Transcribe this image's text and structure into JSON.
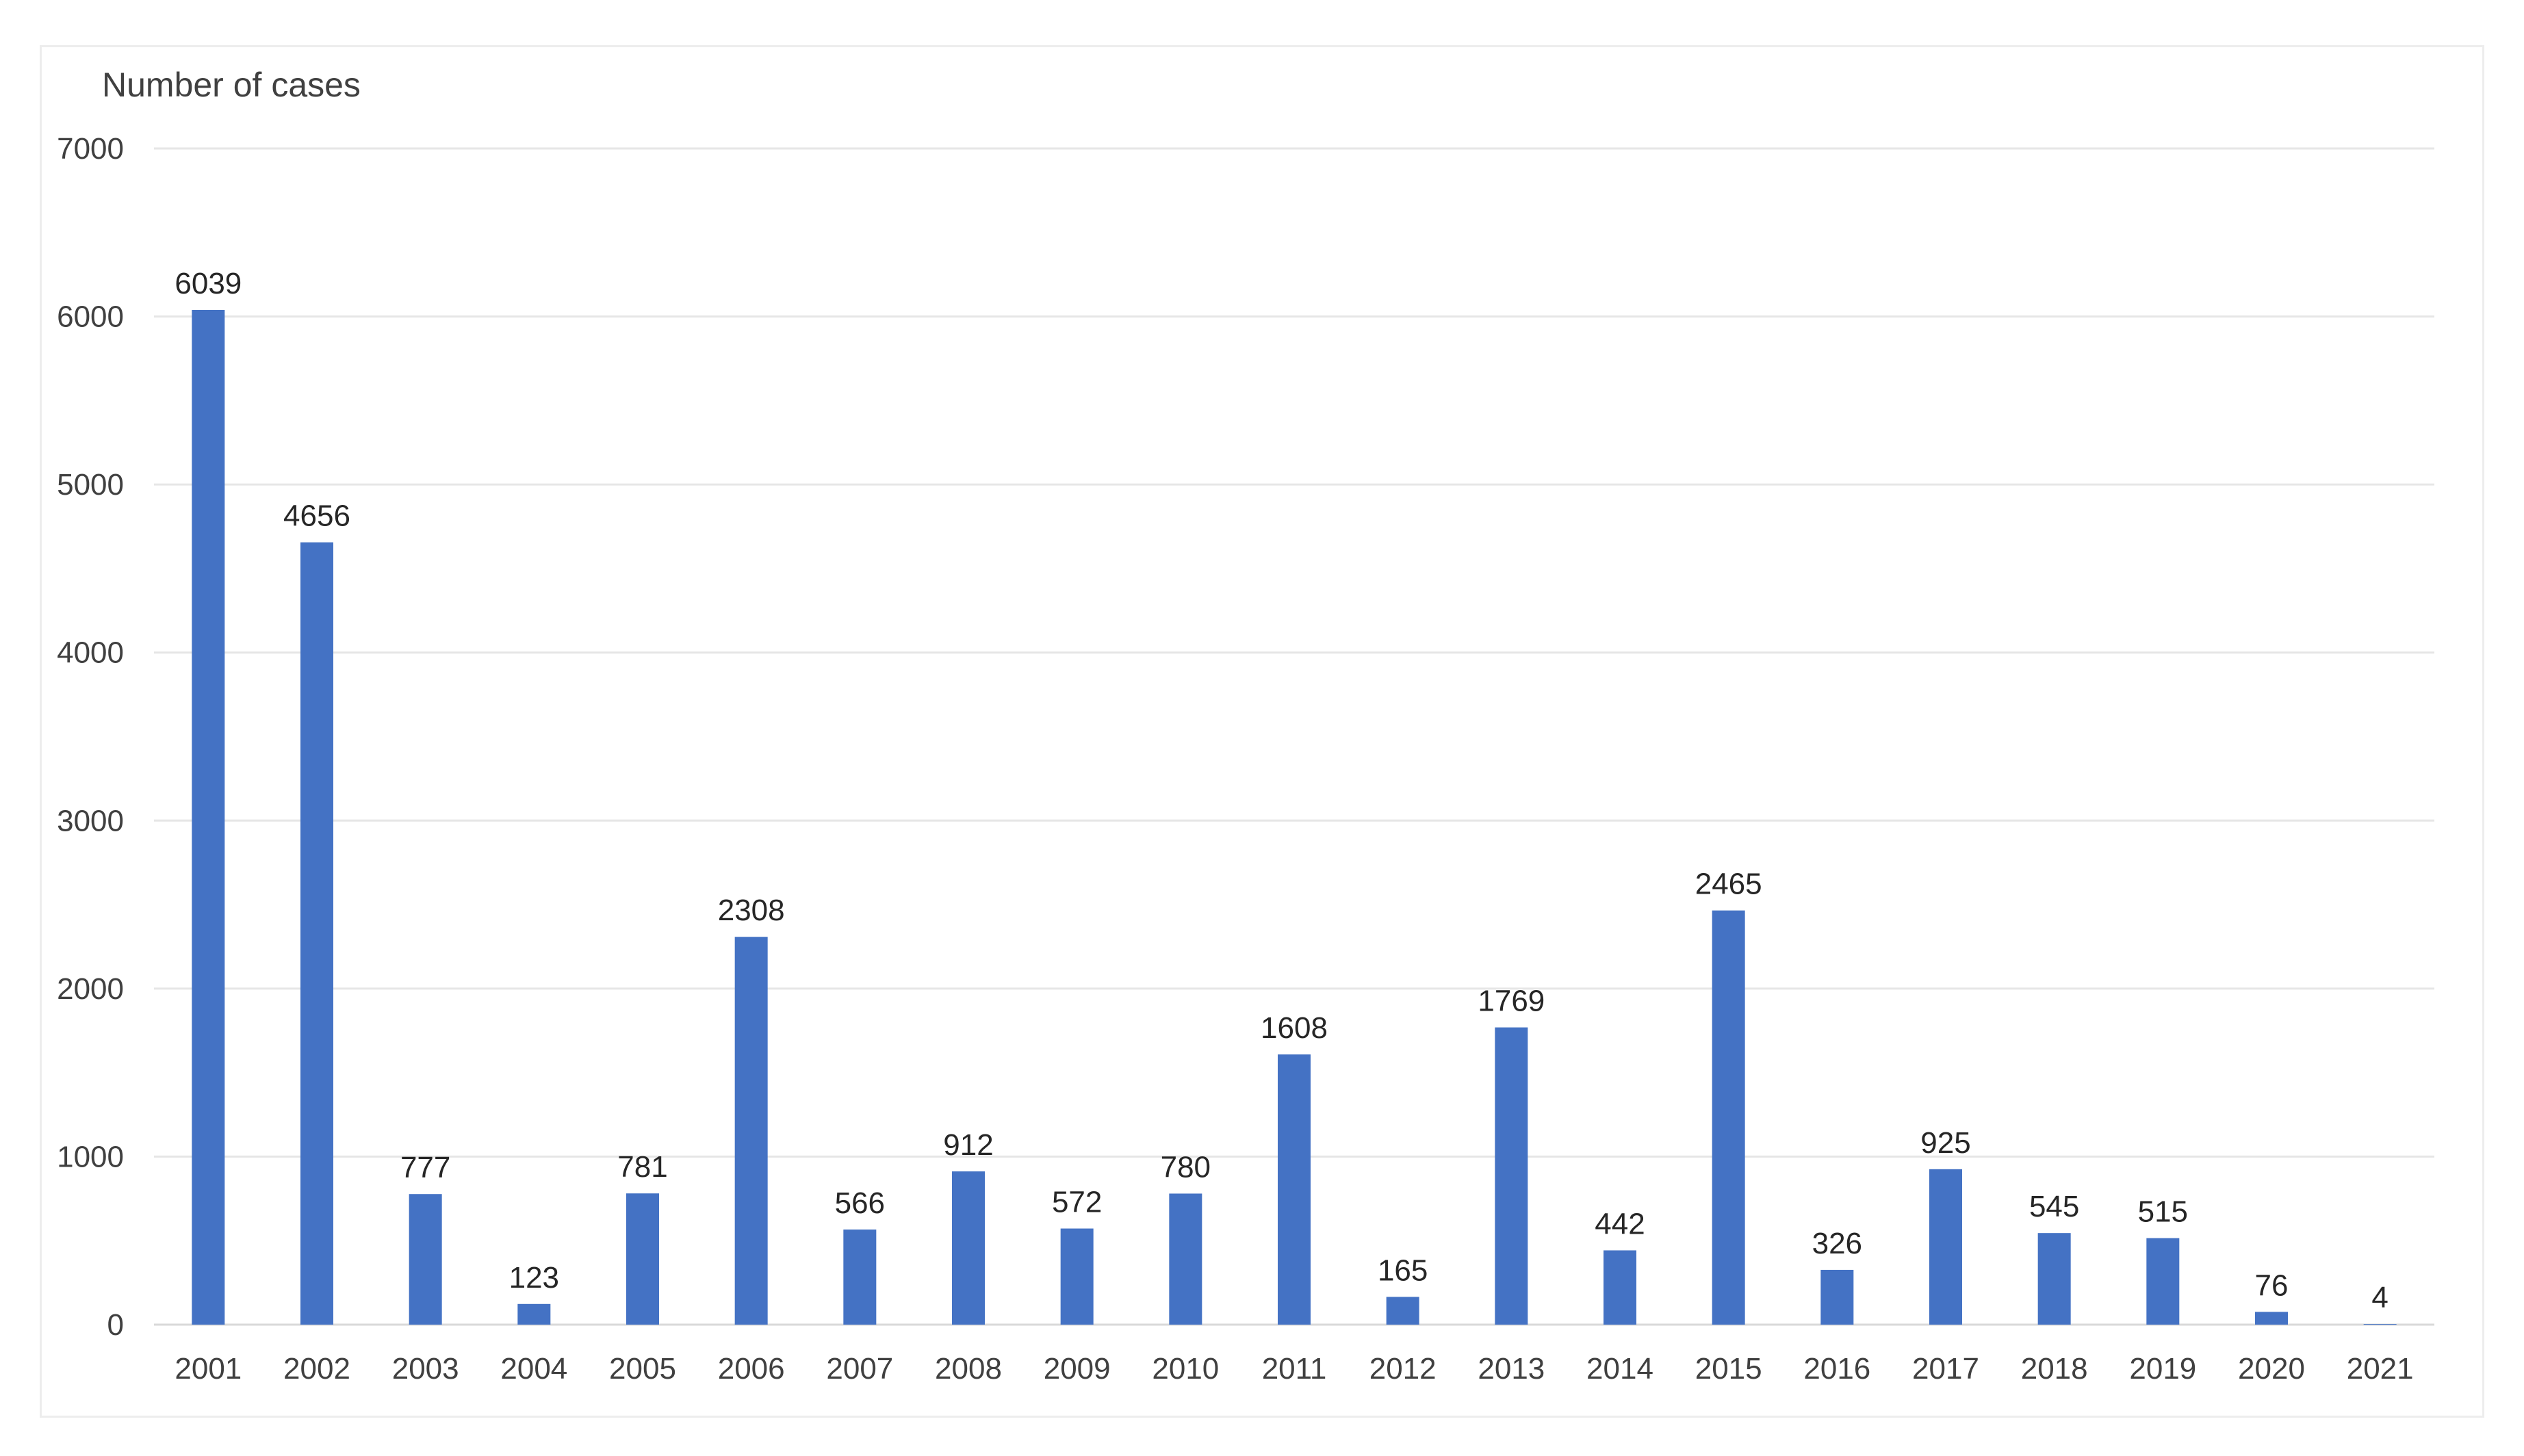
{
  "chart_data": {
    "type": "bar",
    "ylabel": "Number of cases",
    "xlabel": "",
    "ylim": [
      0,
      7000
    ],
    "yticks": [
      0,
      1000,
      2000,
      3000,
      4000,
      5000,
      6000,
      7000
    ],
    "grid": "horizontal",
    "legend": "none",
    "bar_color": "#4472c4",
    "grid_color": "#e6e6e6",
    "categories": [
      "2001",
      "2002",
      "2003",
      "2004",
      "2005",
      "2006",
      "2007",
      "2008",
      "2009",
      "2010",
      "2011",
      "2012",
      "2013",
      "2014",
      "2015",
      "2016",
      "2017",
      "2018",
      "2019",
      "2020",
      "2021"
    ],
    "values": [
      6039,
      4656,
      777,
      123,
      781,
      2308,
      566,
      912,
      572,
      780,
      1608,
      165,
      1769,
      442,
      2465,
      326,
      925,
      545,
      515,
      76,
      4
    ],
    "data_labels": [
      "6039",
      "4656",
      "777",
      "123",
      "781",
      "2308",
      "566",
      "912",
      "572",
      "780",
      "1608",
      "165",
      "1769",
      "442",
      "2465",
      "326",
      "925",
      "545",
      "515",
      "76",
      "4"
    ]
  }
}
